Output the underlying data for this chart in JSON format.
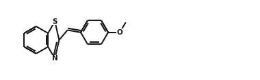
{
  "bg_color": "#ffffff",
  "line_color": "#1a1a1a",
  "line_width": 1.5,
  "s_label": "S",
  "n_label": "N",
  "o_label": "O",
  "figsize": [
    3.8,
    1.18
  ],
  "dpi": 100,
  "xlim": [
    0,
    38
  ],
  "ylim": [
    0,
    11.8
  ]
}
